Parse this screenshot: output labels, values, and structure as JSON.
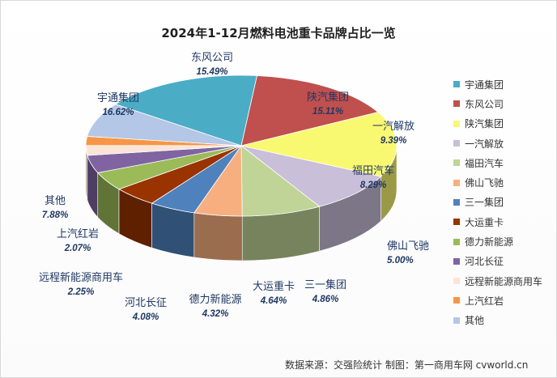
{
  "chart_data": {
    "type": "pie",
    "title": "2024年1-12月燃料电池重卡品牌占比一览",
    "slices": [
      {
        "name": "宇通集团",
        "value": 16.62,
        "label": "16.62%",
        "color": "#4BACC6"
      },
      {
        "name": "东风公司",
        "value": 15.49,
        "label": "15.49%",
        "color": "#C0504D"
      },
      {
        "name": "陕汽集团",
        "value": 15.11,
        "label": "15.11%",
        "color": "#F9F871"
      },
      {
        "name": "一汽解放",
        "value": 9.39,
        "label": "9.39%",
        "color": "#C9BFD9"
      },
      {
        "name": "福田汽车",
        "value": 8.29,
        "label": "8.29%",
        "color": "#BFD496"
      },
      {
        "name": "佛山飞驰",
        "value": 5.0,
        "label": "5.00%",
        "color": "#F8AF80"
      },
      {
        "name": "三一集团",
        "value": 4.86,
        "label": "4.86%",
        "color": "#4F81BD"
      },
      {
        "name": "大运重卡",
        "value": 4.64,
        "label": "4.64%",
        "color": "#993300"
      },
      {
        "name": "德力新能源",
        "value": 4.32,
        "label": "4.32%",
        "color": "#9BBB59"
      },
      {
        "name": "河北长征",
        "value": 4.08,
        "label": "4.08%",
        "color": "#8064A2"
      },
      {
        "name": "远程新能源商用车",
        "value": 2.25,
        "label": "2.25%",
        "color": "#FCE4D6"
      },
      {
        "name": "上汽红岩",
        "value": 2.07,
        "label": "2.07%",
        "color": "#F79646"
      },
      {
        "name": "其他",
        "value": 7.88,
        "label": "7.88%",
        "color": "#B4C7E7"
      }
    ],
    "legend_position": "right"
  },
  "footer": "数据来源：交强险统计 制图：第一商用车网 cvworld.cn"
}
